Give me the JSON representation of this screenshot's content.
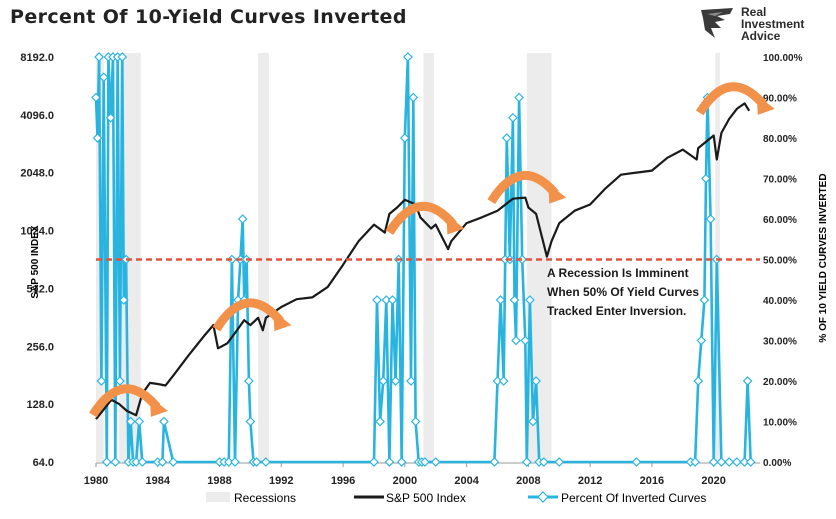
{
  "title": "Percent Of 10-Yield Curves Inverted",
  "brand": {
    "name": "Real Investment Advice"
  },
  "colors": {
    "recession": "#ececec",
    "sp500": "#1a1a1a",
    "inverted": "#29b4e0",
    "threshold": "#e0533c",
    "arrow": "#f2914a"
  },
  "annotation": "A Recession Is Imminent When 50% Of Yield Curves Tracked Enter Inversion.",
  "annotation_lines": [
    "A Recession Is Imminent",
    "When 50% Of Yield Curves",
    "Tracked Enter Inversion."
  ],
  "legend": {
    "recessions": "Recessions",
    "sp500": "S&P 500 Index",
    "inverted": "Percent Of Inverted Curves",
    "position": "bottom"
  },
  "chart_data": {
    "type": "line",
    "title": "Percent Of 10-Yield Curves Inverted",
    "x_ticks": [
      "1980",
      "1984",
      "1988",
      "1992",
      "1996",
      "2000",
      "2004",
      "2008",
      "2012",
      "2016",
      "2020"
    ],
    "xlim": [
      1980,
      2023
    ],
    "y_left": {
      "label": "S&P 500 INDEX",
      "scale": "log2",
      "ticks": [
        "64.0",
        "128.0",
        "256.0",
        "512.0",
        "1024.0",
        "2048.0",
        "4096.0",
        "8192.0"
      ],
      "ylim": [
        64,
        8192
      ]
    },
    "y_right": {
      "label": "% OF 10 YIELD CURVES INVERTED",
      "ticks": [
        "0.00%",
        "10.00%",
        "20.00%",
        "30.00%",
        "40.00%",
        "50.00%",
        "60.00%",
        "70.00%",
        "80.00%",
        "90.00%",
        "100.00%"
      ],
      "ylim": [
        0,
        100
      ]
    },
    "threshold": 50,
    "recessions": [
      [
        1980.0,
        1980.5
      ],
      [
        1981.5,
        1982.9
      ],
      [
        1990.5,
        1991.2
      ],
      [
        2001.2,
        2001.9
      ],
      [
        2007.9,
        2009.5
      ],
      [
        2020.1,
        2020.4
      ]
    ],
    "series": [
      {
        "name": "S&P 500 Index",
        "axis": "left",
        "x": [
          1980,
          1980.5,
          1981,
          1981.5,
          1982,
          1982.6,
          1983,
          1983.5,
          1984,
          1984.5,
          1985,
          1986,
          1987,
          1987.6,
          1987.9,
          1988.5,
          1989,
          1989.6,
          1990,
          1990.5,
          1990.8,
          1991,
          1992,
          1993,
          1994,
          1995,
          1996,
          1997,
          1998,
          1998.7,
          1999,
          1999.5,
          2000,
          2000.7,
          2001,
          2001.7,
          2002,
          2002.8,
          2003,
          2004,
          2005,
          2006,
          2007,
          2007.8,
          2008,
          2008.5,
          2009.2,
          2009.5,
          2010,
          2011,
          2012,
          2013,
          2014,
          2015,
          2016,
          2017,
          2018,
          2018.9,
          2019,
          2020,
          2020.2,
          2020.5,
          2021,
          2021.5,
          2022,
          2022.3
        ],
        "y": [
          107,
          120,
          135,
          128,
          118,
          112,
          145,
          165,
          163,
          160,
          180,
          230,
          290,
          330,
          250,
          265,
          300,
          350,
          330,
          360,
          310,
          360,
          410,
          450,
          460,
          520,
          680,
          900,
          1100,
          1000,
          1250,
          1350,
          1480,
          1400,
          1200,
          1050,
          1100,
          820,
          900,
          1120,
          1200,
          1300,
          1500,
          1520,
          1350,
          1250,
          750,
          900,
          1120,
          1300,
          1400,
          1700,
          2000,
          2050,
          2100,
          2450,
          2700,
          2400,
          2750,
          3200,
          2400,
          3300,
          3900,
          4400,
          4700,
          4300
        ]
      },
      {
        "name": "Percent Of Inverted Curves",
        "axis": "right",
        "x": [
          1980.0,
          1980.1,
          1980.2,
          1980.35,
          1980.5,
          1980.7,
          1980.8,
          1980.95,
          1981.1,
          1981.25,
          1981.4,
          1981.55,
          1981.7,
          1981.8,
          1981.95,
          1982.1,
          1982.25,
          1982.4,
          1982.6,
          1982.8,
          1983.0,
          1984.0,
          1984.3,
          1984.4,
          1985.0,
          1988.0,
          1988.3,
          1988.6,
          1988.8,
          1989.0,
          1989.2,
          1989.35,
          1989.5,
          1989.6,
          1989.75,
          1989.9,
          1990.0,
          1990.2,
          1990.4,
          1991.0,
          1998.0,
          1998.2,
          1998.4,
          1998.6,
          1998.8,
          1999.0,
          1999.2,
          1999.4,
          1999.6,
          1999.8,
          2000.0,
          2000.2,
          2000.4,
          2000.55,
          2000.7,
          2000.9,
          2001.1,
          2001.3,
          2002.0,
          2005.8,
          2006.0,
          2006.2,
          2006.4,
          2006.5,
          2006.6,
          2006.8,
          2007.0,
          2007.1,
          2007.2,
          2007.4,
          2007.6,
          2007.8,
          2007.9,
          2008.1,
          2008.3,
          2008.5,
          2008.7,
          2009.0,
          2010.0,
          2015.0,
          2018.5,
          2018.8,
          2019.0,
          2019.2,
          2019.4,
          2019.5,
          2019.6,
          2019.8,
          2020.0,
          2020.2,
          2020.5,
          2021.0,
          2021.5,
          2022.0,
          2022.2,
          2022.4
        ],
        "y": [
          90,
          80,
          100,
          20,
          95,
          0,
          100,
          85,
          100,
          0,
          100,
          20,
          100,
          40,
          50,
          0,
          10,
          0,
          0,
          10,
          0,
          0,
          0,
          10,
          0,
          0,
          0,
          0,
          50,
          0,
          40,
          50,
          60,
          40,
          50,
          20,
          10,
          0,
          0,
          0,
          0,
          40,
          10,
          20,
          40,
          0,
          40,
          20,
          50,
          0,
          80,
          100,
          20,
          90,
          10,
          0,
          0,
          0,
          0,
          0,
          20,
          40,
          20,
          50,
          80,
          50,
          85,
          40,
          30,
          90,
          50,
          30,
          0,
          40,
          10,
          20,
          0,
          0,
          0,
          0,
          0,
          0,
          20,
          30,
          40,
          70,
          90,
          60,
          0,
          50,
          0,
          0,
          0,
          0,
          20,
          0
        ]
      }
    ]
  }
}
